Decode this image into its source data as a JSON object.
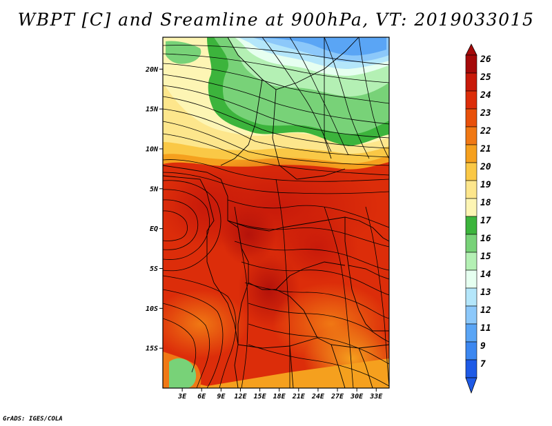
{
  "title": "WBPT [C] and Sreamline at 900hPa, VT: 2019033015",
  "footer": "GrADS: IGES/COLA",
  "map": {
    "lon_range": [
      0,
      35
    ],
    "lat_range": [
      -20,
      24
    ],
    "lat_ticks": [
      {
        "value": 20,
        "label": "20N"
      },
      {
        "value": 15,
        "label": "15N"
      },
      {
        "value": 10,
        "label": "10N"
      },
      {
        "value": 5,
        "label": "5N"
      },
      {
        "value": 0,
        "label": "EQ"
      },
      {
        "value": -5,
        "label": "5S"
      },
      {
        "value": -10,
        "label": "10S"
      },
      {
        "value": -15,
        "label": "15S"
      }
    ],
    "lon_ticks": [
      {
        "value": 3,
        "label": "3E"
      },
      {
        "value": 6,
        "label": "6E"
      },
      {
        "value": 9,
        "label": "9E"
      },
      {
        "value": 12,
        "label": "12E"
      },
      {
        "value": 15,
        "label": "15E"
      },
      {
        "value": 18,
        "label": "18E"
      },
      {
        "value": 21,
        "label": "21E"
      },
      {
        "value": 24,
        "label": "24E"
      },
      {
        "value": 27,
        "label": "27E"
      },
      {
        "value": 30,
        "label": "30E"
      },
      {
        "value": 33,
        "label": "33E"
      }
    ]
  },
  "colorbar": {
    "levels": [
      {
        "label": "26",
        "color": "#a50a0a"
      },
      {
        "label": "25",
        "color": "#c81a0a"
      },
      {
        "label": "24",
        "color": "#dc2d0a"
      },
      {
        "label": "23",
        "color": "#e8500a"
      },
      {
        "label": "22",
        "color": "#f07814"
      },
      {
        "label": "21",
        "color": "#f5a01e"
      },
      {
        "label": "20",
        "color": "#fac846"
      },
      {
        "label": "19",
        "color": "#fde68c"
      },
      {
        "label": "18",
        "color": "#fdf5b4"
      },
      {
        "label": "17",
        "color": "#3cb43c"
      },
      {
        "label": "16",
        "color": "#78d278"
      },
      {
        "label": "15",
        "color": "#b4f0b4"
      },
      {
        "label": "14",
        "color": "#e6fff0"
      },
      {
        "label": "13",
        "color": "#b4e6fa"
      },
      {
        "label": "12",
        "color": "#8cc8fa"
      },
      {
        "label": "11",
        "color": "#5aa5f5"
      },
      {
        "label": "9",
        "color": "#3c87f0"
      },
      {
        "label": "7",
        "color": "#1e5ae6"
      }
    ],
    "top_extension_color": "#a50a0a",
    "bottom_extension_color": "#1e5ae6"
  }
}
